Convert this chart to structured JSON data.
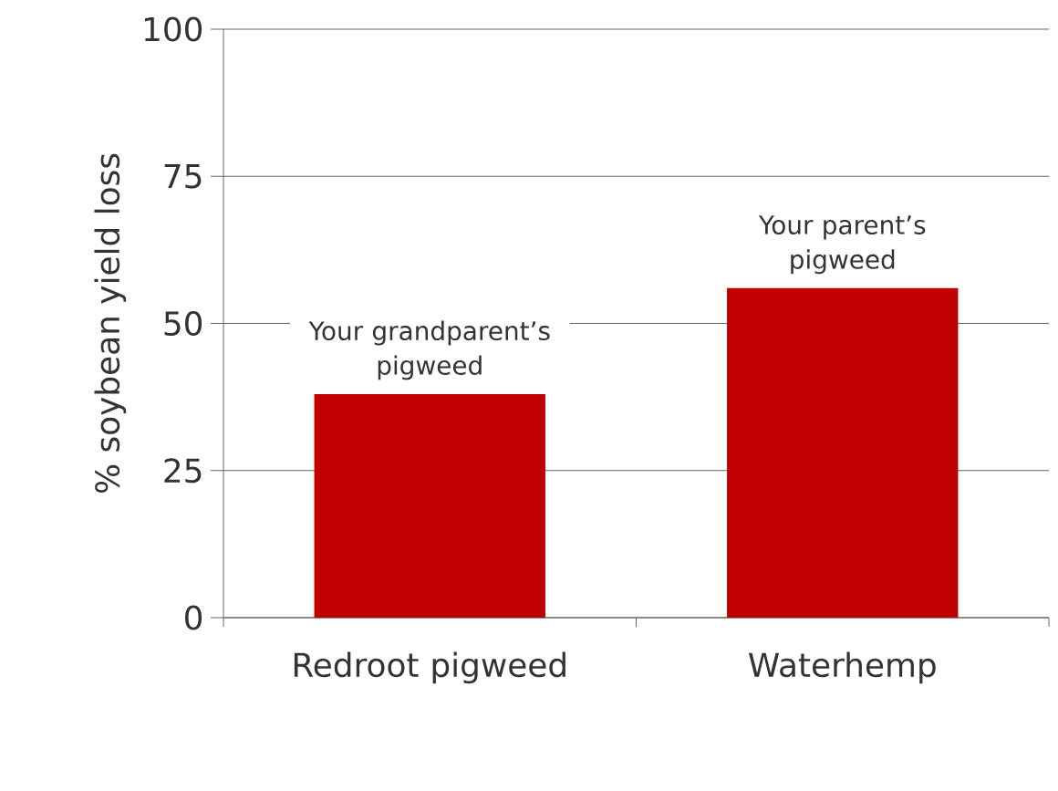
{
  "chart_data": {
    "type": "bar",
    "ylabel": "% soybean yield loss",
    "categories": [
      "Redroot pigweed",
      "Waterhemp"
    ],
    "values": [
      38,
      56
    ],
    "color": "#c00000",
    "ylim": [
      0,
      100
    ],
    "yticks": [
      0,
      25,
      50,
      75,
      100
    ],
    "grid": "y",
    "annotations": [
      {
        "text": "Your grandparent’s pigweed",
        "x": "Redroot pigweed",
        "y": 38
      },
      {
        "text": "Your parent’s pigweed",
        "x": "Waterhemp",
        "y": 56
      }
    ]
  }
}
